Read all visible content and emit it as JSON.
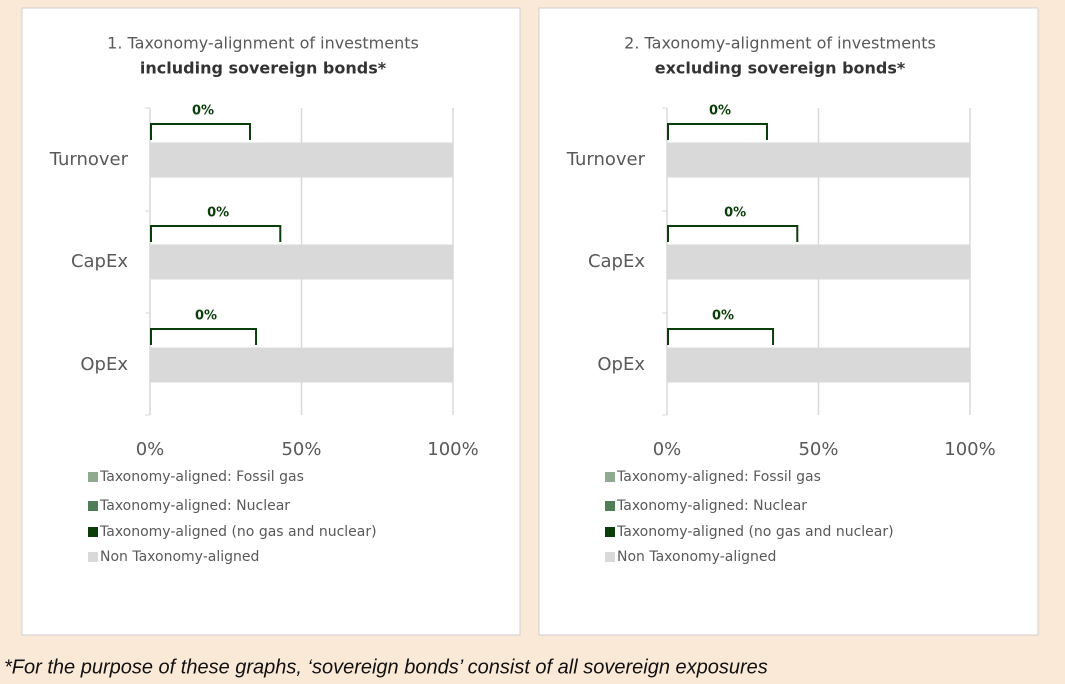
{
  "chart_data": [
    {
      "type": "stacked-bar-horizontal",
      "title": "1. Taxonomy-alignment of investments",
      "subtitle": "including sovereign bonds*",
      "categories": [
        "Turnover",
        "CapEx",
        "OpEx"
      ],
      "series": [
        {
          "name": "Taxonomy-aligned: Fossil gas",
          "color": "#8faa8f",
          "values": [
            0,
            0,
            0
          ]
        },
        {
          "name": "Taxonomy-aligned: Nuclear",
          "color": "#4e7d58",
          "values": [
            0,
            0,
            0
          ]
        },
        {
          "name": "Taxonomy-aligned (no gas and nuclear)",
          "color": "#0b3d0b",
          "values": [
            0,
            0,
            0
          ],
          "value_labels": [
            "0%",
            "0%",
            "0%"
          ]
        },
        {
          "name": "Non Taxonomy-aligned",
          "color": "#d9d9d9",
          "values": [
            100,
            100,
            100
          ]
        }
      ],
      "xlim": [
        0,
        100
      ],
      "xticks": [
        {
          "value": 0,
          "label": "0%"
        },
        {
          "value": 50,
          "label": "50%"
        },
        {
          "value": 100,
          "label": "100%"
        }
      ],
      "grid": true
    },
    {
      "type": "stacked-bar-horizontal",
      "title": "2. Taxonomy-alignment of investments",
      "subtitle": "excluding sovereign bonds*",
      "categories": [
        "Turnover",
        "CapEx",
        "OpEx"
      ],
      "series": [
        {
          "name": "Taxonomy-aligned: Fossil gas",
          "color": "#8faa8f",
          "values": [
            0,
            0,
            0
          ]
        },
        {
          "name": "Taxonomy-aligned: Nuclear",
          "color": "#4e7d58",
          "values": [
            0,
            0,
            0
          ]
        },
        {
          "name": "Taxonomy-aligned (no gas and nuclear)",
          "color": "#0b3d0b",
          "values": [
            0,
            0,
            0
          ],
          "value_labels": [
            "0%",
            "0%",
            "0%"
          ]
        },
        {
          "name": "Non Taxonomy-aligned",
          "color": "#d9d9d9",
          "values": [
            100,
            100,
            100
          ]
        }
      ],
      "xlim": [
        0,
        100
      ],
      "xticks": [
        {
          "value": 0,
          "label": "0%"
        },
        {
          "value": 50,
          "label": "50%"
        },
        {
          "value": 100,
          "label": "100%"
        }
      ],
      "grid": true
    }
  ],
  "footnote": "*For the purpose of these graphs, ‘sovereign bonds’ consist of  all sovereign exposures"
}
